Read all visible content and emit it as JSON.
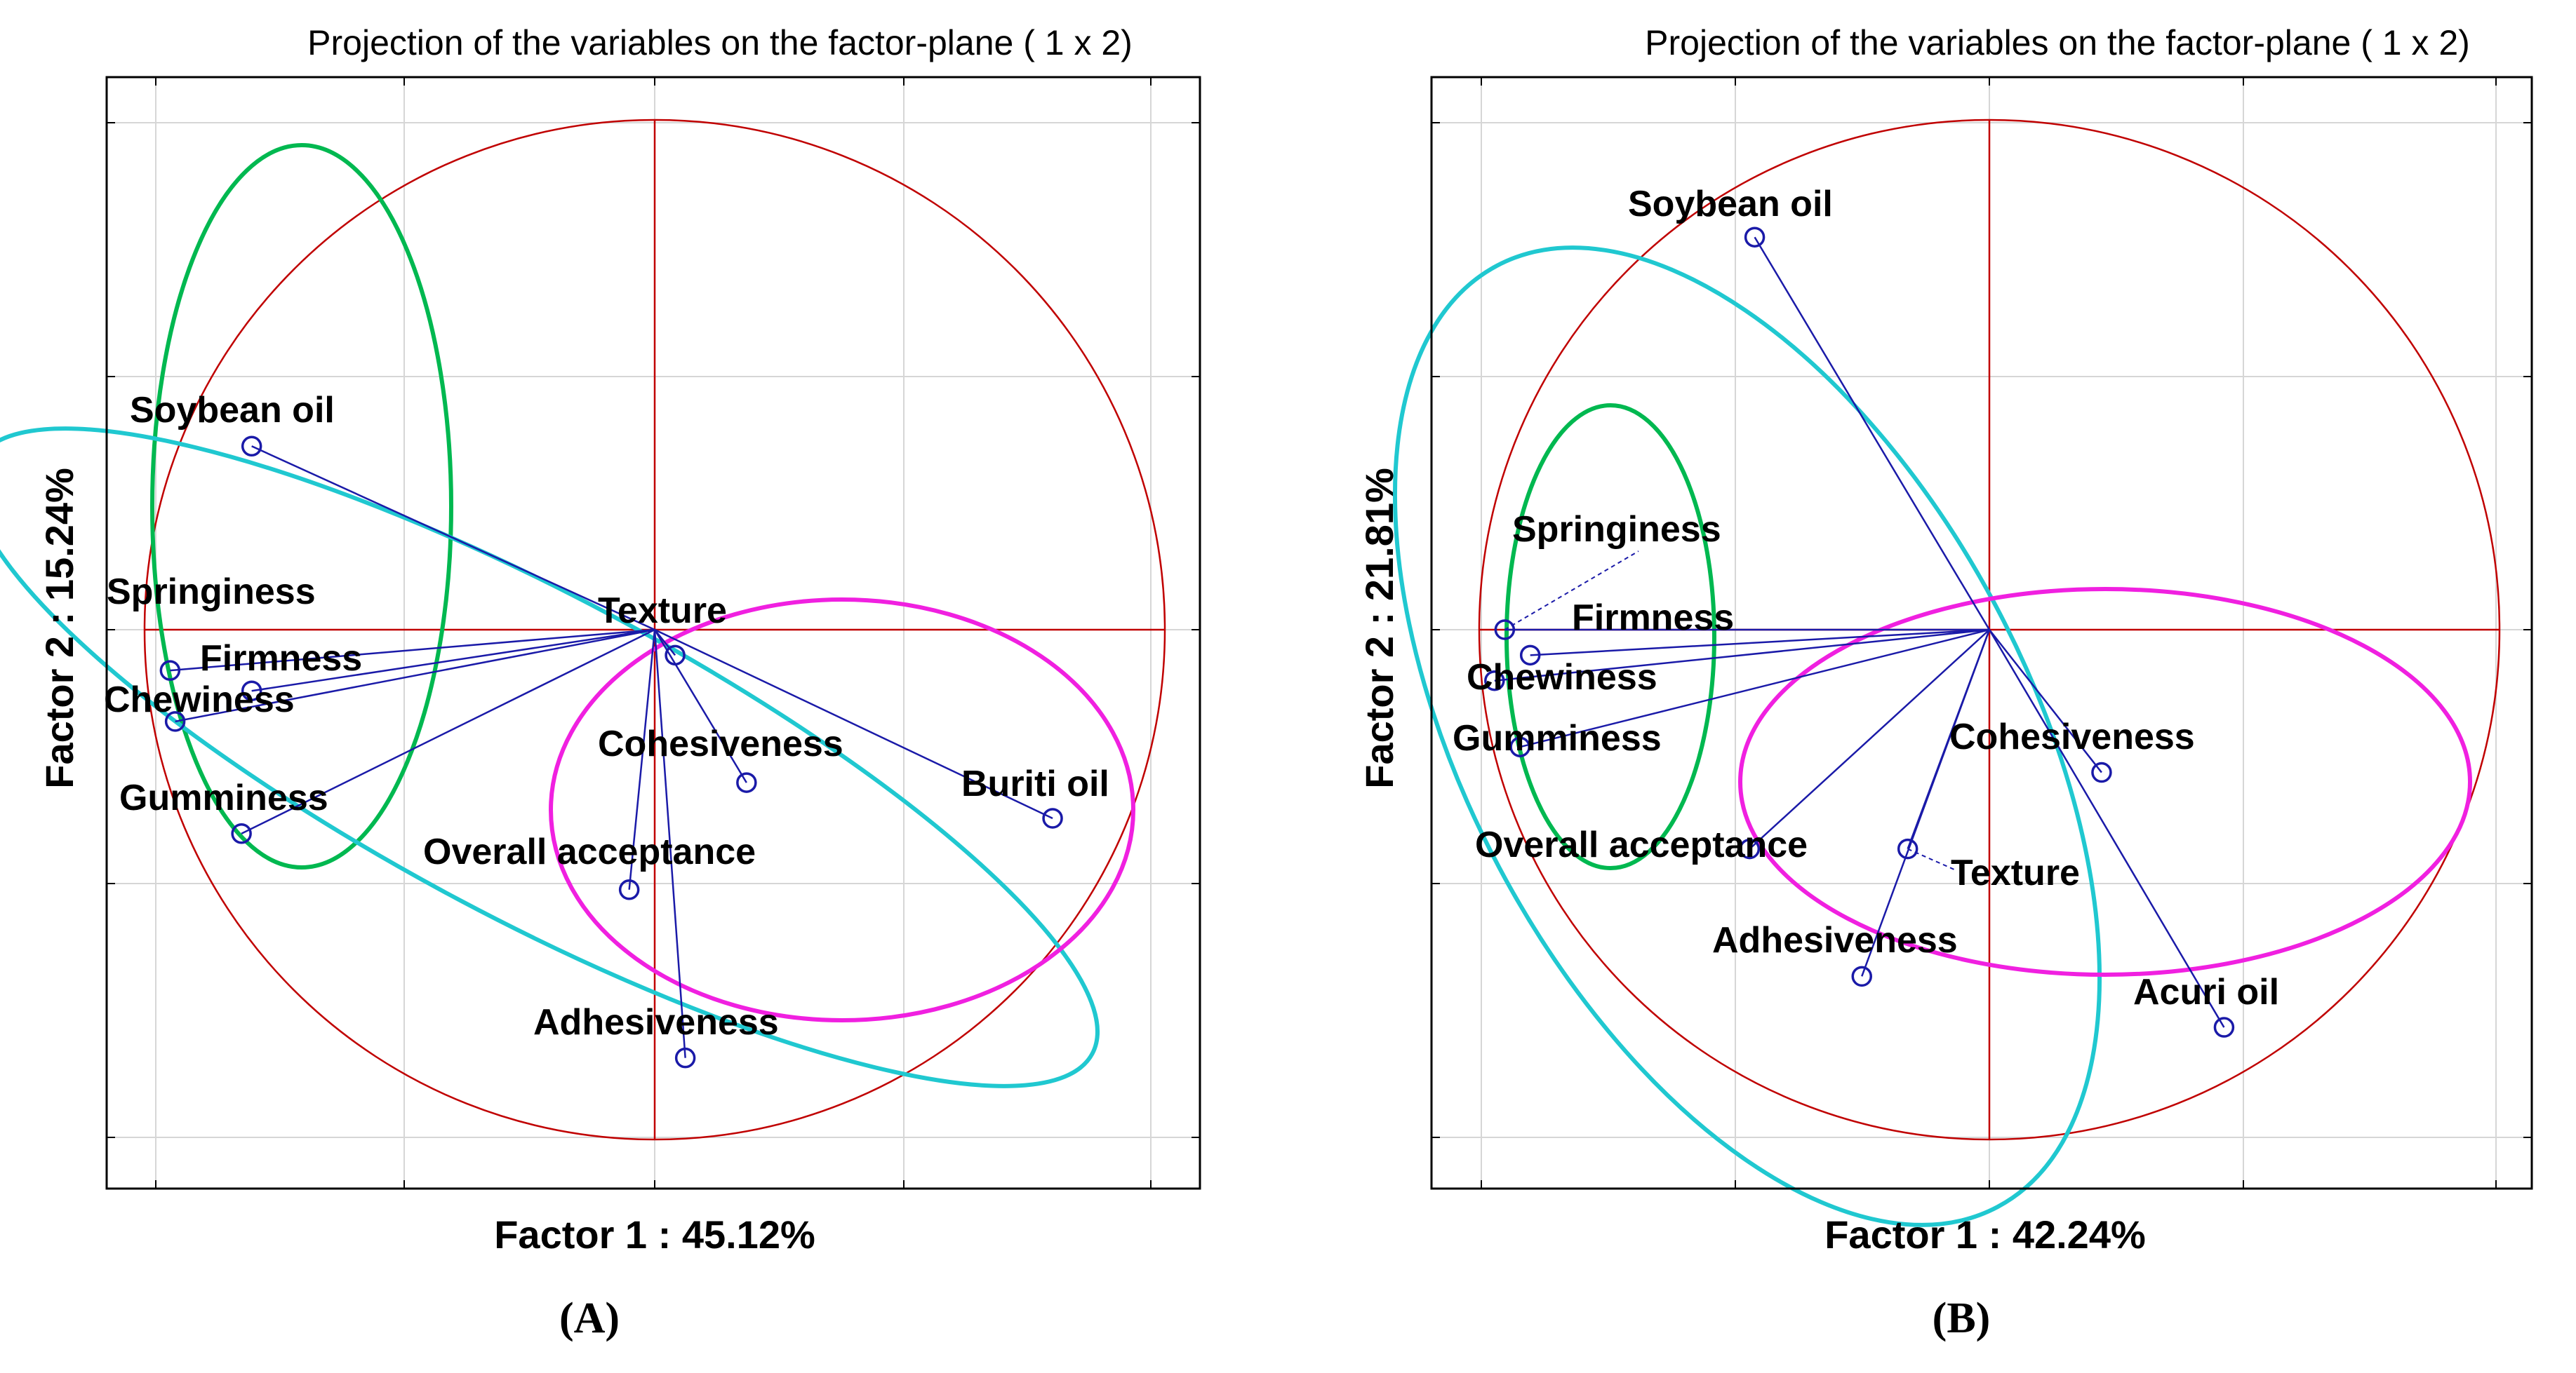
{
  "panels": [
    {
      "id": "A",
      "title": "Projection of the variables on the factor-plane (  1 x   2)",
      "caption": "(A)",
      "xlabel": "Factor 1 : 45.12%",
      "ylabel": "Factor 2 : 15.24%",
      "vectors": [
        {
          "name": "Soybean oil",
          "x": -0.79,
          "y": 0.36
        },
        {
          "name": "Springiness",
          "x": -0.95,
          "y": -0.08
        },
        {
          "name": "Firmness",
          "x": -0.79,
          "y": -0.12
        },
        {
          "name": "Chewiness",
          "x": -0.94,
          "y": -0.18
        },
        {
          "name": "Gumminess",
          "x": -0.81,
          "y": -0.4
        },
        {
          "name": "Texture",
          "x": 0.04,
          "y": -0.05
        },
        {
          "name": "Cohesiveness",
          "x": 0.18,
          "y": -0.3
        },
        {
          "name": "Overall acceptance",
          "x": -0.05,
          "y": -0.51
        },
        {
          "name": "Adhesiveness",
          "x": 0.06,
          "y": -0.84
        },
        {
          "name": "Buriti oil",
          "x": 0.78,
          "y": -0.37
        }
      ],
      "groups": [
        {
          "color": "#00b850"
        },
        {
          "color": "#20c8d0"
        },
        {
          "color": "#f020e0"
        }
      ]
    },
    {
      "id": "B",
      "title": "Projection of the variables on the factor-plane (  1 x   2)",
      "caption": "(B)",
      "xlabel": "Factor 1 : 42.24%",
      "ylabel": "Factor 2 : 21.81%",
      "vectors": [
        {
          "name": "Soybean oil",
          "x": -0.46,
          "y": 0.77
        },
        {
          "name": "Springiness",
          "x": -0.95,
          "y": 0.0
        },
        {
          "name": "Firmness",
          "x": -0.9,
          "y": -0.05
        },
        {
          "name": "Chewiness",
          "x": -0.97,
          "y": -0.1
        },
        {
          "name": "Gumminess",
          "x": -0.92,
          "y": -0.23
        },
        {
          "name": "Overall acceptance",
          "x": -0.47,
          "y": -0.43
        },
        {
          "name": "Texture",
          "x": -0.16,
          "y": -0.43
        },
        {
          "name": "Cohesiveness",
          "x": 0.22,
          "y": -0.28
        },
        {
          "name": "Adhesiveness",
          "x": -0.25,
          "y": -0.68
        },
        {
          "name": "Acuri oil",
          "x": 0.46,
          "y": -0.78
        }
      ],
      "groups": [
        {
          "color": "#00b850"
        },
        {
          "color": "#20c8d0"
        },
        {
          "color": "#f020e0"
        }
      ]
    }
  ],
  "chart_data": [
    {
      "type": "scatter",
      "title": "Projection of the variables on the factor-plane (  1 x   2)",
      "xlabel": "Factor 1 : 45.12%",
      "ylabel": "Factor 2 : 15.24%",
      "xlim": [
        -1.1,
        1.1
      ],
      "ylim": [
        -1.1,
        1.1
      ],
      "grid": true,
      "points": [
        {
          "label": "Soybean oil",
          "x": -0.79,
          "y": 0.36
        },
        {
          "label": "Springiness",
          "x": -0.95,
          "y": -0.08
        },
        {
          "label": "Firmness",
          "x": -0.79,
          "y": -0.12
        },
        {
          "label": "Chewiness",
          "x": -0.94,
          "y": -0.18
        },
        {
          "label": "Gumminess",
          "x": -0.81,
          "y": -0.4
        },
        {
          "label": "Texture",
          "x": 0.04,
          "y": -0.05
        },
        {
          "label": "Cohesiveness",
          "x": 0.18,
          "y": -0.3
        },
        {
          "label": "Overall acceptance",
          "x": -0.05,
          "y": -0.51
        },
        {
          "label": "Adhesiveness",
          "x": 0.06,
          "y": -0.84
        },
        {
          "label": "Buriti oil",
          "x": 0.78,
          "y": -0.37
        }
      ]
    },
    {
      "type": "scatter",
      "title": "Projection of the variables on the factor-plane (  1 x   2)",
      "xlabel": "Factor 1 : 42.24%",
      "ylabel": "Factor 2 : 21.81%",
      "xlim": [
        -1.1,
        1.1
      ],
      "ylim": [
        -1.1,
        1.1
      ],
      "grid": true,
      "points": [
        {
          "label": "Soybean oil",
          "x": -0.46,
          "y": 0.77
        },
        {
          "label": "Springiness",
          "x": -0.95,
          "y": 0.0
        },
        {
          "label": "Firmness",
          "x": -0.9,
          "y": -0.05
        },
        {
          "label": "Chewiness",
          "x": -0.97,
          "y": -0.1
        },
        {
          "label": "Gumminess",
          "x": -0.92,
          "y": -0.23
        },
        {
          "label": "Overall acceptance",
          "x": -0.47,
          "y": -0.43
        },
        {
          "label": "Texture",
          "x": -0.16,
          "y": -0.43
        },
        {
          "label": "Cohesiveness",
          "x": 0.22,
          "y": -0.28
        },
        {
          "label": "Adhesiveness",
          "x": -0.25,
          "y": -0.68
        },
        {
          "label": "Acuri oil",
          "x": 0.46,
          "y": -0.78
        }
      ]
    }
  ]
}
